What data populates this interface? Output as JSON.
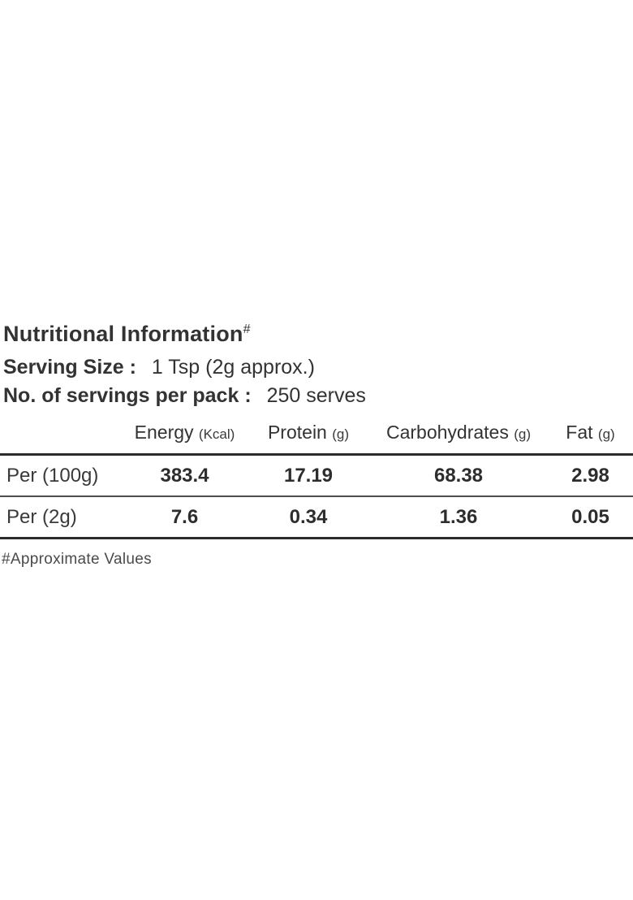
{
  "header": {
    "title": "Nutritional Information",
    "title_mark": "#",
    "serving_size_label": "Serving Size :",
    "serving_size_value": "1 Tsp (2g approx.)",
    "servings_label": "No. of servings per pack :",
    "servings_value": "250 serves"
  },
  "table": {
    "columns": [
      {
        "name": "Energy",
        "unit": "(Kcal)"
      },
      {
        "name": "Protein",
        "unit": "(g)"
      },
      {
        "name": "Carbohydrates",
        "unit": "(g)"
      },
      {
        "name": "Fat",
        "unit": "(g)"
      }
    ],
    "rows": [
      {
        "label": "Per (100g)",
        "values": [
          "383.4",
          "17.19",
          "68.38",
          "2.98"
        ]
      },
      {
        "label": "Per (2g)",
        "values": [
          "7.6",
          "0.34",
          "1.36",
          "0.05"
        ]
      }
    ]
  },
  "footnote": "#Approximate Values",
  "colors": {
    "background": "#ffffff",
    "text_primary": "#2d2d2d",
    "text_secondary": "#4a4a4a",
    "rule_heavy": "#2b2b2b",
    "rule_light": "#4d4d4d"
  }
}
